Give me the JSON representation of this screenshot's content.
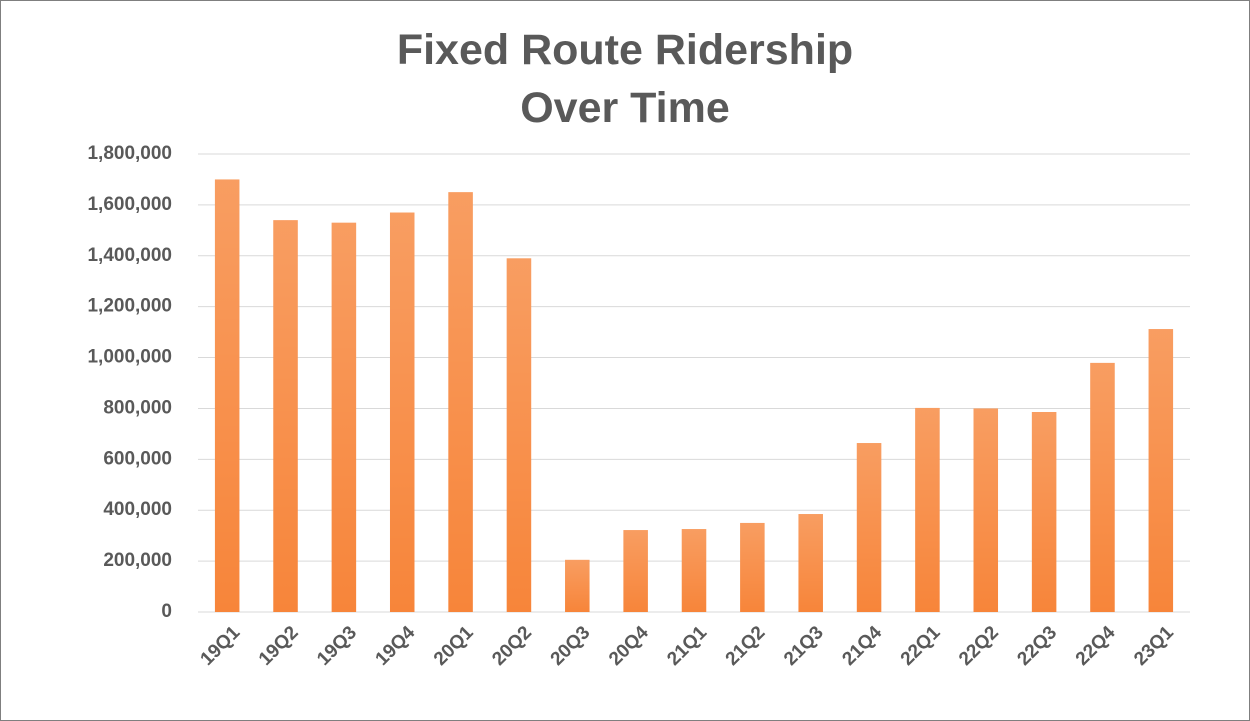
{
  "chart_data": {
    "type": "bar",
    "title": "Fixed Route Ridership Over Time",
    "categories": [
      "19Q1",
      "19Q2",
      "19Q3",
      "19Q4",
      "20Q1",
      "20Q2",
      "20Q3",
      "20Q4",
      "21Q1",
      "21Q2",
      "21Q3",
      "21Q4",
      "22Q1",
      "22Q2",
      "22Q3",
      "22Q4",
      "23Q1"
    ],
    "values": [
      1700000,
      1540000,
      1530000,
      1570000,
      1650000,
      1390000,
      205000,
      322000,
      326000,
      350000,
      385000,
      664000,
      802000,
      800000,
      786000,
      979000,
      1112000
    ],
    "color": "#f7853a",
    "ylim": [
      0,
      1800000
    ],
    "yticks": [
      0,
      {
        "value": 200000,
        "label": "200,000"
      },
      {
        "value": 400000,
        "label": "400,000"
      },
      {
        "value": 600000,
        "label": "600,000"
      },
      {
        "value": 800000,
        "label": "800,000"
      },
      {
        "value": 1000000,
        "label": "1,000,000"
      },
      {
        "value": 1200000,
        "label": "1,200,000"
      },
      {
        "value": 1400000,
        "label": "1,400,000"
      },
      {
        "value": 1600000,
        "label": "1,600,000"
      },
      {
        "value": 1800000,
        "label": "1,800,000"
      }
    ],
    "grid": true
  }
}
